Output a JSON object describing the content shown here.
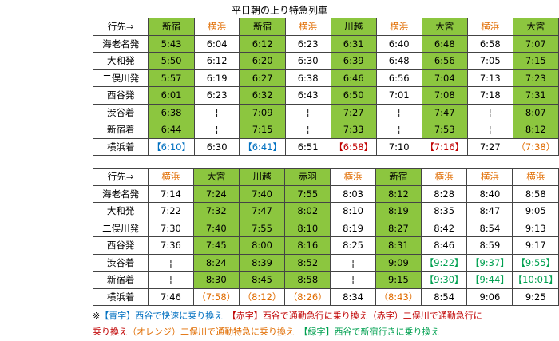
{
  "title": "平日朝の上り特急列車",
  "table1": {
    "header_label": "行先⇒",
    "columns": [
      {
        "dest": "新宿",
        "dest_color": "black",
        "green": true
      },
      {
        "dest": "横浜",
        "dest_color": "orange",
        "green": false
      },
      {
        "dest": "新宿",
        "dest_color": "black",
        "green": true
      },
      {
        "dest": "横浜",
        "dest_color": "orange",
        "green": false
      },
      {
        "dest": "川越",
        "dest_color": "black",
        "green": true
      },
      {
        "dest": "横浜",
        "dest_color": "orange",
        "green": false
      },
      {
        "dest": "大宮",
        "dest_color": "black",
        "green": true
      },
      {
        "dest": "横浜",
        "dest_color": "orange",
        "green": false
      },
      {
        "dest": "大宮",
        "dest_color": "black",
        "green": true
      }
    ],
    "rows": [
      {
        "label": "海老名発",
        "cells": [
          "5:43",
          "6:04",
          "6:12",
          "6:23",
          "6:31",
          "6:40",
          "6:48",
          "6:58",
          "7:07"
        ]
      },
      {
        "label": "大和発",
        "cells": [
          "5:50",
          "6:12",
          "6:20",
          "6:30",
          "6:39",
          "6:48",
          "6:56",
          "7:05",
          "7:15"
        ]
      },
      {
        "label": "二俣川発",
        "cells": [
          "5:57",
          "6:19",
          "6:27",
          "6:38",
          "6:46",
          "6:56",
          "7:04",
          "7:13",
          "7:23"
        ]
      },
      {
        "label": "西谷発",
        "cells": [
          "6:01",
          "6:23",
          "6:32",
          "6:43",
          "6:50",
          "7:01",
          "7:08",
          "7:18",
          "7:31"
        ]
      },
      {
        "label": "渋谷着",
        "cells": [
          "6:38",
          "¦",
          "7:09",
          "¦",
          "7:27",
          "¦",
          "7:47",
          "¦",
          "8:07"
        ]
      },
      {
        "label": "新宿着",
        "cells": [
          "6:44",
          "¦",
          "7:15",
          "¦",
          "7:33",
          "¦",
          "7:53",
          "¦",
          "8:12"
        ]
      },
      {
        "label": "横浜着",
        "cells": [
          "【6:10】",
          "6:30",
          "【6:41】",
          "6:51",
          "【6:58】",
          "7:10",
          "【7:16】",
          "7:27",
          "（7:38）"
        ],
        "cell_colors": [
          "blue",
          "black",
          "blue",
          "black",
          "red",
          "black",
          "red",
          "black",
          "orange"
        ]
      }
    ]
  },
  "table2": {
    "header_label": "行先⇒",
    "columns": [
      {
        "dest": "横浜",
        "dest_color": "orange",
        "green": false
      },
      {
        "dest": "大宮",
        "dest_color": "black",
        "green": true
      },
      {
        "dest": "川越",
        "dest_color": "black",
        "green": true
      },
      {
        "dest": "赤羽",
        "dest_color": "black",
        "green": true
      },
      {
        "dest": "横浜",
        "dest_color": "orange",
        "green": false
      },
      {
        "dest": "新宿",
        "dest_color": "black",
        "green": true
      },
      {
        "dest": "横浜",
        "dest_color": "orange",
        "green": false
      },
      {
        "dest": "横浜",
        "dest_color": "orange",
        "green": false
      },
      {
        "dest": "横浜",
        "dest_color": "orange",
        "green": false
      }
    ],
    "rows": [
      {
        "label": "海老名発",
        "cells": [
          "7:14",
          "7:24",
          "7:40",
          "7:55",
          "8:03",
          "8:12",
          "8:28",
          "8:40",
          "8:58"
        ]
      },
      {
        "label": "大和発",
        "cells": [
          "7:22",
          "7:32",
          "7:47",
          "8:02",
          "8:10",
          "8:19",
          "8:35",
          "8:47",
          "9:05"
        ]
      },
      {
        "label": "二俣川発",
        "cells": [
          "7:30",
          "7:40",
          "7:55",
          "8:10",
          "8:19",
          "8:27",
          "8:42",
          "8:54",
          "9:13"
        ]
      },
      {
        "label": "西谷発",
        "cells": [
          "7:36",
          "7:45",
          "8:00",
          "8:16",
          "8:25",
          "8:31",
          "8:46",
          "8:59",
          "9:17"
        ]
      },
      {
        "label": "渋谷着",
        "cells": [
          "¦",
          "8:24",
          "8:39",
          "8:52",
          "¦",
          "9:09",
          "【9:22】",
          "【9:37】",
          "【9:55】"
        ],
        "cell_colors": [
          "black",
          "black",
          "black",
          "black",
          "black",
          "black",
          "green",
          "green",
          "green"
        ]
      },
      {
        "label": "新宿着",
        "cells": [
          "¦",
          "8:30",
          "8:45",
          "8:58",
          "¦",
          "9:15",
          "【9:30】",
          "【9:44】",
          "【10:01】"
        ],
        "cell_colors": [
          "black",
          "black",
          "black",
          "black",
          "black",
          "black",
          "green",
          "green",
          "green"
        ]
      },
      {
        "label": "横浜着",
        "cells": [
          "7:46",
          "（7:58）",
          "（8:12）",
          "（8:26）",
          "8:34",
          "（8:43）",
          "8:54",
          "9:06",
          "9:25"
        ],
        "cell_colors": [
          "black",
          "orange",
          "orange",
          "orange",
          "black",
          "orange",
          "black",
          "black",
          "black"
        ]
      }
    ]
  },
  "notes": {
    "line1": [
      {
        "text": "※",
        "color": "black"
      },
      {
        "text": "【青字】西谷で快速に乗り換え",
        "color": "blue"
      },
      {
        "text": "　",
        "color": "black"
      },
      {
        "text": "【赤字】西谷で通勤急行に乗り換え（赤字）二俣川で通勤急行に",
        "color": "red"
      }
    ],
    "line2": [
      {
        "text": "乗り換え",
        "color": "red"
      },
      {
        "text": "（オレンジ）二俣川で通勤特急に乗り換え",
        "color": "orange"
      },
      {
        "text": "　",
        "color": "black"
      },
      {
        "text": "【緑字】西谷で新宿行きに乗り換え",
        "color": "green"
      }
    ]
  },
  "colors": {
    "green_fill": "#8cc63f",
    "orange": "#e06c00",
    "blue": "#0070c0",
    "red": "#c00000",
    "green_text": "#00a050"
  }
}
